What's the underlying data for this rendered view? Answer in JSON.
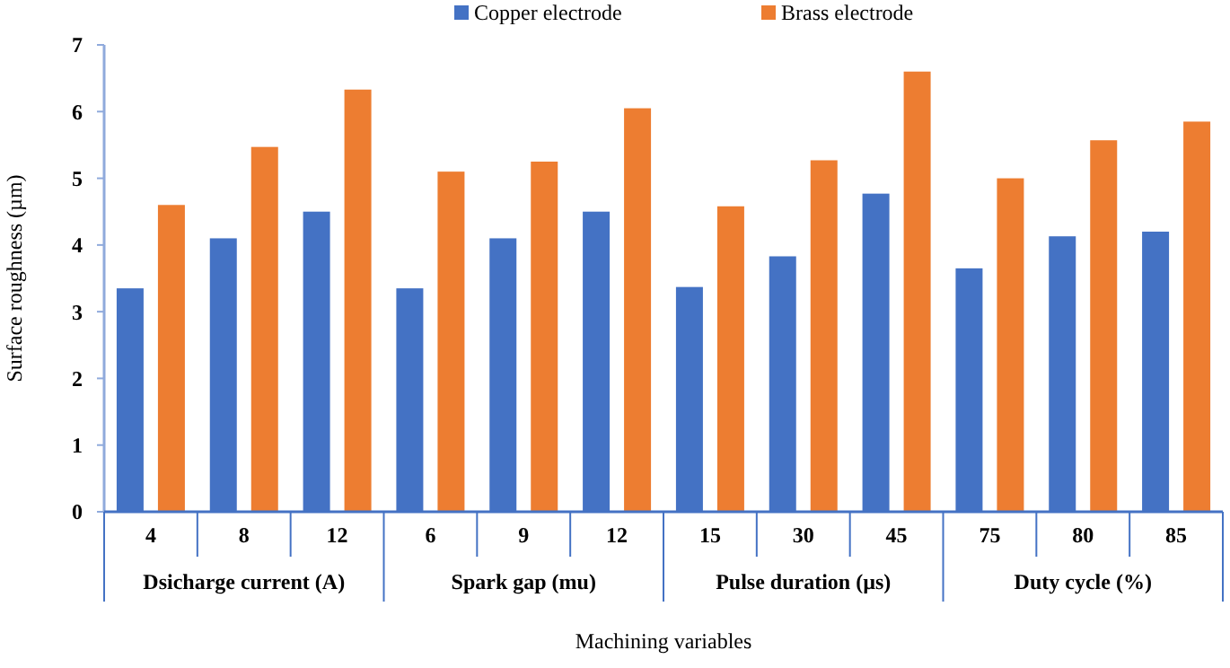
{
  "chart_data": {
    "type": "bar",
    "xlabel": "Machining variables",
    "ylabel": "Surface roughness (µm)",
    "categories": [
      "4",
      "8",
      "12",
      "6",
      "9",
      "12",
      "15",
      "30",
      "45",
      "75",
      "80",
      "85"
    ],
    "series": [
      {
        "name": "Copper electrode",
        "color": "#4472c4",
        "values": [
          3.35,
          4.1,
          4.5,
          3.35,
          4.1,
          4.5,
          3.37,
          3.83,
          4.77,
          3.65,
          4.13,
          4.2
        ]
      },
      {
        "name": "Brass electrode",
        "color": "#ed7d31",
        "values": [
          4.6,
          5.47,
          6.33,
          5.1,
          5.25,
          6.05,
          4.58,
          5.27,
          6.6,
          5.0,
          5.57,
          5.85
        ]
      }
    ],
    "annotations": [
      "Dsicharge current (A)",
      "Spark gap (mu)",
      "Pulse duration (µs)",
      "Duty cycle (%)"
    ],
    "ylim": [
      0,
      7
    ],
    "yticks": [
      0,
      1,
      2,
      3,
      4,
      5,
      6,
      7
    ],
    "grid": false,
    "legend": "top"
  }
}
